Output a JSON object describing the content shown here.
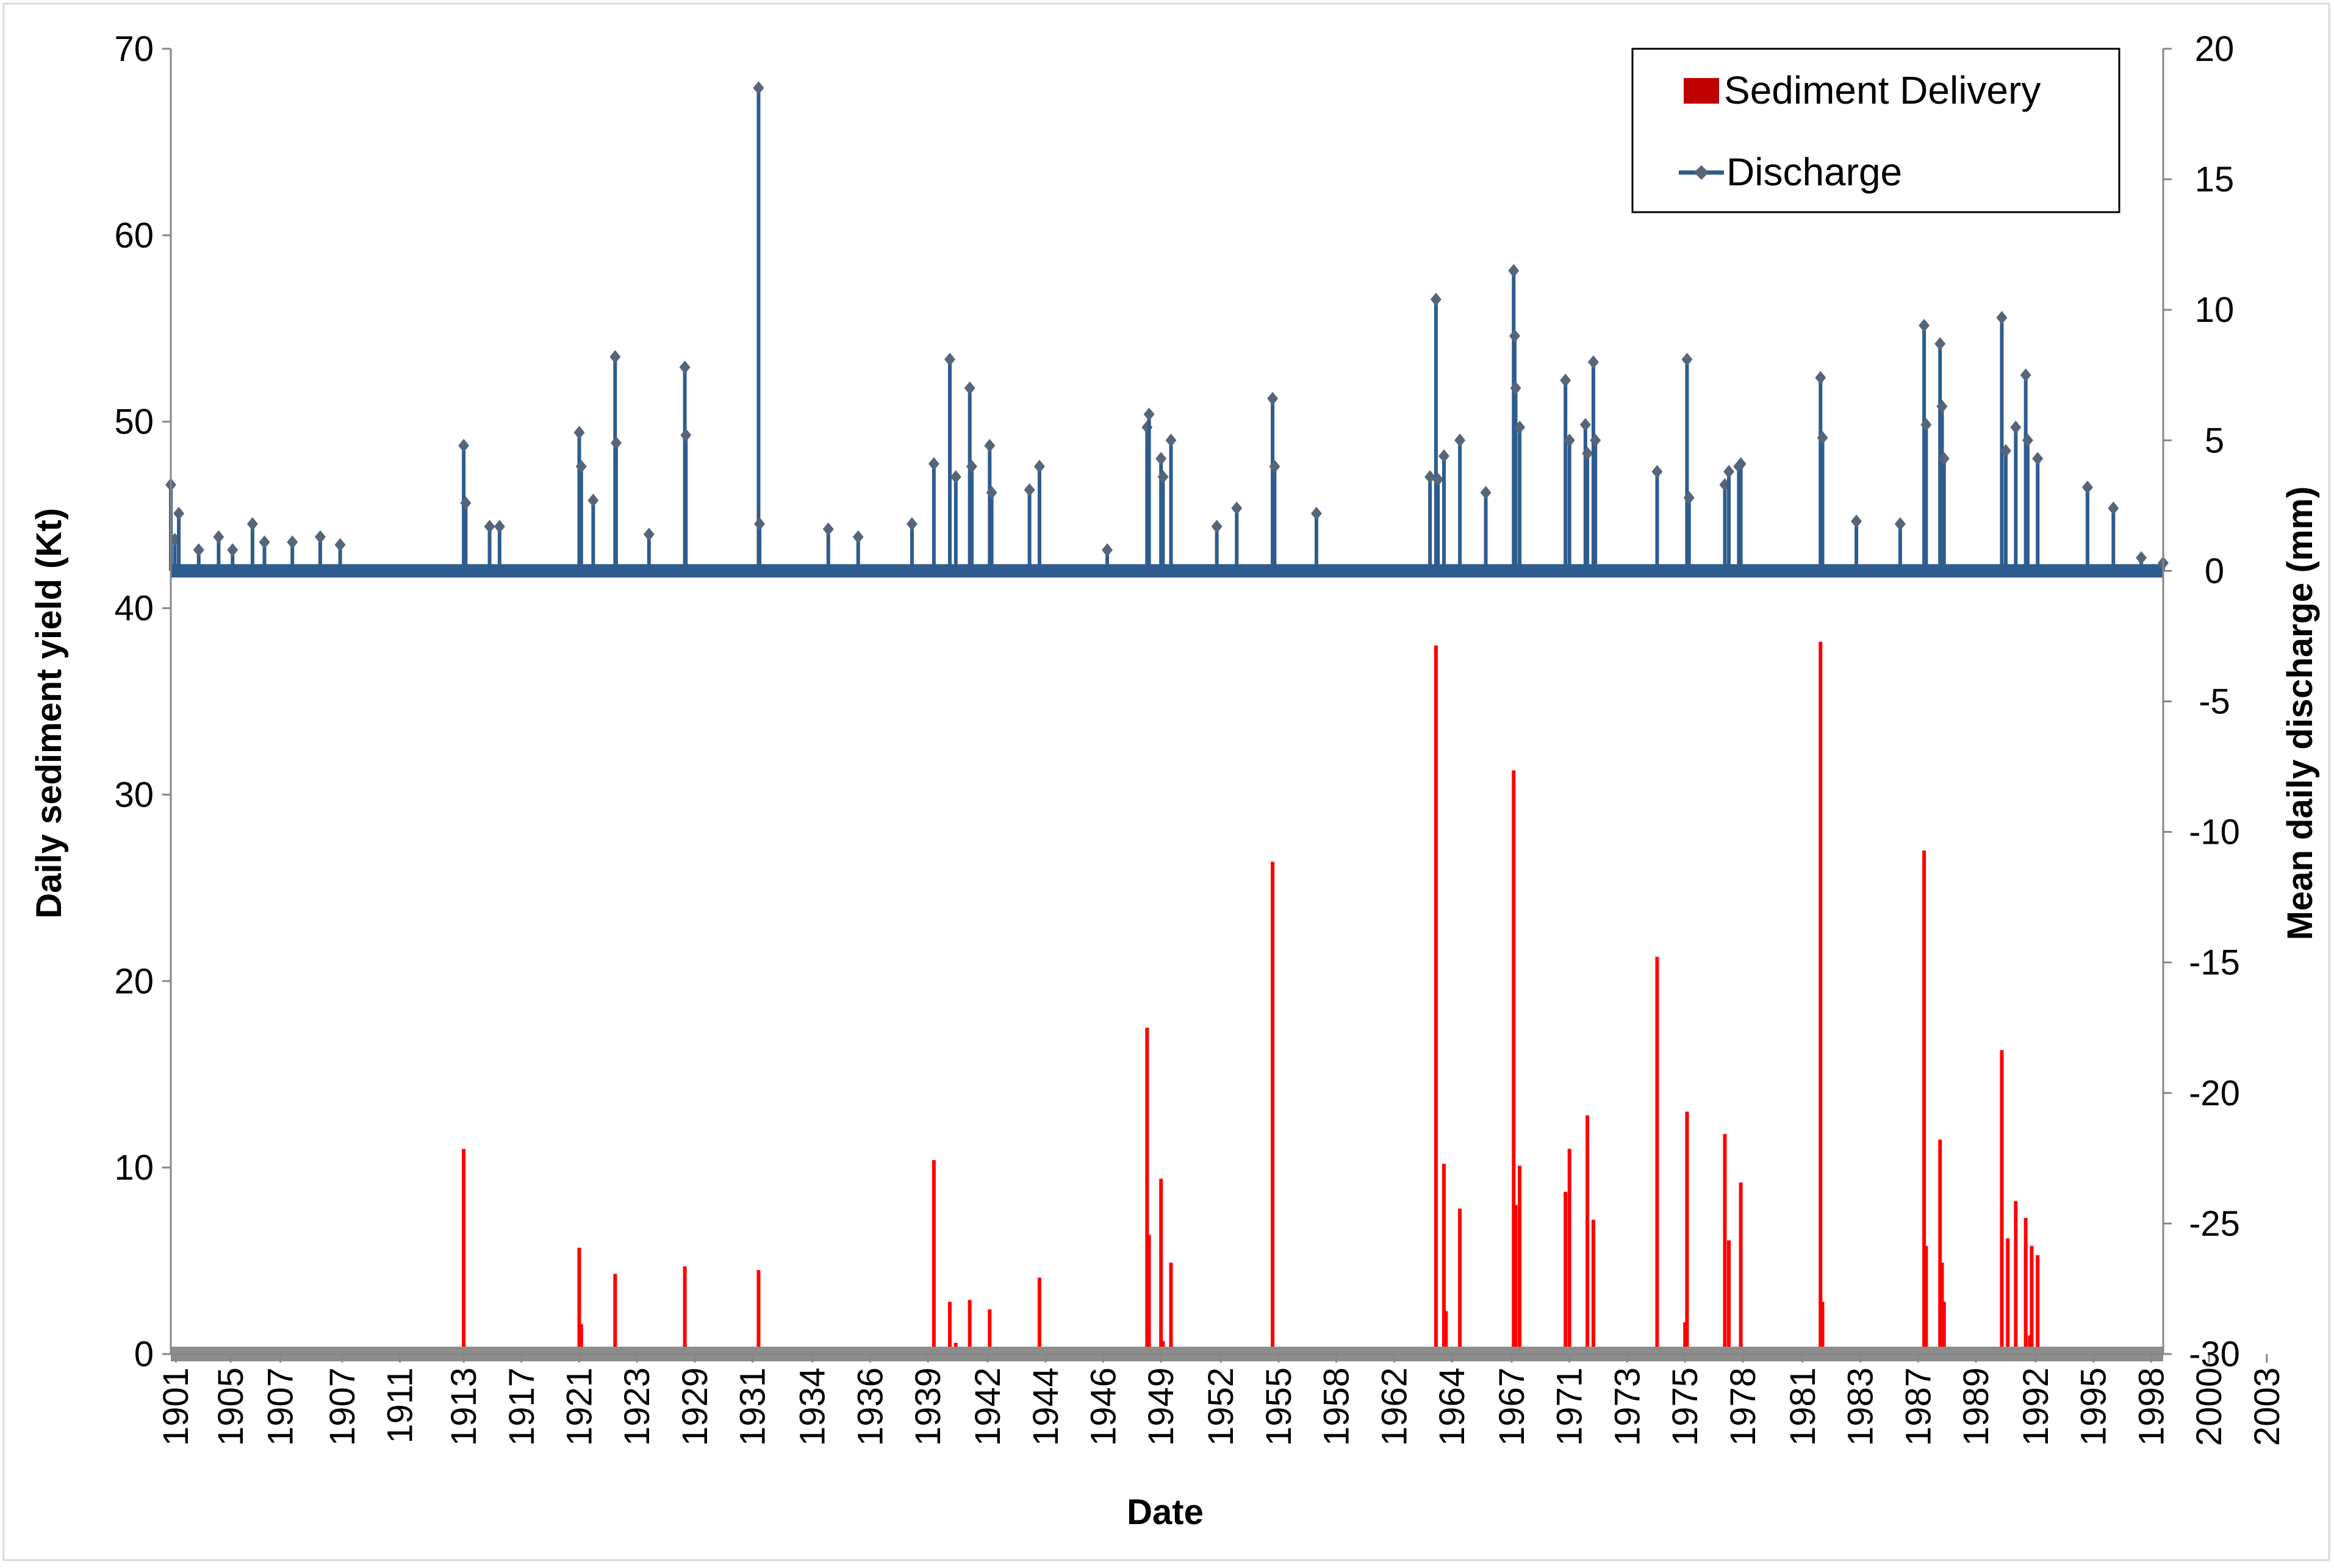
{
  "chart_data": {
    "type": "bar+line",
    "title": "",
    "xlabel": "Date",
    "ylabel_left": "Daily sediment yield (Kt)",
    "ylabel_right": "Mean daily discharge (mm)",
    "ylim_left": [
      0,
      70
    ],
    "yticks_left": [
      "0",
      "10",
      "20",
      "30",
      "40",
      "50",
      "60",
      "70"
    ],
    "ylim_right": [
      -30,
      20
    ],
    "yticks_right": [
      "-30",
      "-25",
      "-20",
      "-15",
      "-10",
      "-5",
      "0",
      "5",
      "10",
      "15",
      "20"
    ],
    "x_index_range": [
      0,
      1000
    ],
    "categories": [
      "1901",
      "1905",
      "1907",
      "1907",
      "1911",
      "1913",
      "1917",
      "1921",
      "1923",
      "1929",
      "1931",
      "1934",
      "1936",
      "1939",
      "1942",
      "1944",
      "1946",
      "1949",
      "1952",
      "1955",
      "1958",
      "1962",
      "1964",
      "1967",
      "1971",
      "1973",
      "1975",
      "1978",
      "1981",
      "1983",
      "1987",
      "1989",
      "1992",
      "1995",
      "1998",
      "2000",
      "2003"
    ],
    "category_positions": [
      2.5,
      30,
      55,
      86,
      115,
      147,
      176,
      205,
      234,
      263,
      292,
      322,
      351,
      380,
      410,
      439,
      468,
      497,
      527,
      556,
      585,
      614,
      643,
      673,
      702,
      731,
      760,
      789,
      819,
      848,
      877,
      906,
      936,
      965,
      994,
      1023,
      1052
    ],
    "legend": {
      "position": "top-right",
      "entries": [
        "Sediment Delivery",
        "Discharge"
      ]
    },
    "series": [
      {
        "name": "Sediment Delivery",
        "kind": "bar",
        "axis": "left",
        "color": "#ff0000",
        "points": [
          {
            "x": 147,
            "y": 11.0
          },
          {
            "x": 205,
            "y": 5.7
          },
          {
            "x": 206,
            "y": 1.6
          },
          {
            "x": 223,
            "y": 4.3
          },
          {
            "x": 258,
            "y": 4.7
          },
          {
            "x": 295,
            "y": 4.5
          },
          {
            "x": 383,
            "y": 10.4
          },
          {
            "x": 391,
            "y": 2.8
          },
          {
            "x": 394,
            "y": 0.6
          },
          {
            "x": 401,
            "y": 2.9
          },
          {
            "x": 411,
            "y": 2.4
          },
          {
            "x": 436,
            "y": 4.1
          },
          {
            "x": 490,
            "y": 17.5
          },
          {
            "x": 491,
            "y": 6.4
          },
          {
            "x": 497,
            "y": 9.4
          },
          {
            "x": 498,
            "y": 0.7
          },
          {
            "x": 502,
            "y": 4.9
          },
          {
            "x": 553,
            "y": 26.4
          },
          {
            "x": 635,
            "y": 38.0
          },
          {
            "x": 639,
            "y": 10.2
          },
          {
            "x": 640,
            "y": 2.3
          },
          {
            "x": 647,
            "y": 7.8
          },
          {
            "x": 674,
            "y": 31.3
          },
          {
            "x": 675,
            "y": 8.0
          },
          {
            "x": 677,
            "y": 10.1
          },
          {
            "x": 700,
            "y": 8.7
          },
          {
            "x": 702,
            "y": 11.0
          },
          {
            "x": 711,
            "y": 12.8
          },
          {
            "x": 714,
            "y": 7.2
          },
          {
            "x": 746,
            "y": 21.3
          },
          {
            "x": 761,
            "y": 13.0
          },
          {
            "x": 760,
            "y": 1.7
          },
          {
            "x": 780,
            "y": 11.8
          },
          {
            "x": 782,
            "y": 6.1
          },
          {
            "x": 788,
            "y": 9.2
          },
          {
            "x": 828,
            "y": 38.2
          },
          {
            "x": 829,
            "y": 2.8
          },
          {
            "x": 880,
            "y": 27.0
          },
          {
            "x": 881,
            "y": 5.8
          },
          {
            "x": 888,
            "y": 11.5
          },
          {
            "x": 889,
            "y": 4.9
          },
          {
            "x": 890,
            "y": 2.8
          },
          {
            "x": 919,
            "y": 16.3
          },
          {
            "x": 922,
            "y": 6.2
          },
          {
            "x": 926,
            "y": 8.2
          },
          {
            "x": 931,
            "y": 7.3
          },
          {
            "x": 933,
            "y": 1.0
          },
          {
            "x": 934,
            "y": 5.8
          },
          {
            "x": 937,
            "y": 5.3
          }
        ]
      },
      {
        "name": "Discharge",
        "kind": "line",
        "axis": "right",
        "color": "#2e5c8e",
        "marker_color": "#56657a",
        "points": [
          {
            "x": 0,
            "y": 3.3
          },
          {
            "x": 2,
            "y": 1.2
          },
          {
            "x": 4,
            "y": 2.2
          },
          {
            "x": 14,
            "y": 0.8
          },
          {
            "x": 24,
            "y": 1.3
          },
          {
            "x": 31,
            "y": 0.8
          },
          {
            "x": 41,
            "y": 1.8
          },
          {
            "x": 47,
            "y": 1.1
          },
          {
            "x": 61,
            "y": 1.1
          },
          {
            "x": 75,
            "y": 1.3
          },
          {
            "x": 85,
            "y": 1.0
          },
          {
            "x": 147,
            "y": 4.8
          },
          {
            "x": 148,
            "y": 2.6
          },
          {
            "x": 160,
            "y": 1.7
          },
          {
            "x": 165,
            "y": 1.7
          },
          {
            "x": 205,
            "y": 5.3
          },
          {
            "x": 206,
            "y": 4.0
          },
          {
            "x": 212,
            "y": 2.7
          },
          {
            "x": 223,
            "y": 8.2
          },
          {
            "x": 223.5,
            "y": 4.9
          },
          {
            "x": 240,
            "y": 1.4
          },
          {
            "x": 258,
            "y": 7.8
          },
          {
            "x": 258.5,
            "y": 5.2
          },
          {
            "x": 295,
            "y": 18.5
          },
          {
            "x": 295.5,
            "y": 1.8
          },
          {
            "x": 330,
            "y": 1.6
          },
          {
            "x": 345,
            "y": 1.3
          },
          {
            "x": 372,
            "y": 1.8
          },
          {
            "x": 383,
            "y": 4.1
          },
          {
            "x": 391,
            "y": 8.1
          },
          {
            "x": 394,
            "y": 3.6
          },
          {
            "x": 401,
            "y": 7.0
          },
          {
            "x": 402,
            "y": 4.0
          },
          {
            "x": 411,
            "y": 4.8
          },
          {
            "x": 412,
            "y": 3.0
          },
          {
            "x": 431,
            "y": 3.1
          },
          {
            "x": 436,
            "y": 4.0
          },
          {
            "x": 470,
            "y": 0.8
          },
          {
            "x": 490,
            "y": 5.5
          },
          {
            "x": 491,
            "y": 6.0
          },
          {
            "x": 497,
            "y": 4.3
          },
          {
            "x": 498,
            "y": 3.6
          },
          {
            "x": 502,
            "y": 5.0
          },
          {
            "x": 525,
            "y": 1.7
          },
          {
            "x": 535,
            "y": 2.4
          },
          {
            "x": 553,
            "y": 6.6
          },
          {
            "x": 554,
            "y": 4.0
          },
          {
            "x": 575,
            "y": 2.2
          },
          {
            "x": 632,
            "y": 3.6
          },
          {
            "x": 635,
            "y": 10.4
          },
          {
            "x": 636,
            "y": 3.5
          },
          {
            "x": 639,
            "y": 4.4
          },
          {
            "x": 647,
            "y": 5.0
          },
          {
            "x": 660,
            "y": 3.0
          },
          {
            "x": 674,
            "y": 11.5
          },
          {
            "x": 674.5,
            "y": 9.0
          },
          {
            "x": 675,
            "y": 7.0
          },
          {
            "x": 677,
            "y": 5.5
          },
          {
            "x": 700,
            "y": 7.3
          },
          {
            "x": 702,
            "y": 5.0
          },
          {
            "x": 710,
            "y": 5.6
          },
          {
            "x": 711,
            "y": 4.5
          },
          {
            "x": 714,
            "y": 8.0
          },
          {
            "x": 715,
            "y": 5.0
          },
          {
            "x": 746,
            "y": 3.8
          },
          {
            "x": 761,
            "y": 8.1
          },
          {
            "x": 762,
            "y": 2.8
          },
          {
            "x": 780,
            "y": 3.3
          },
          {
            "x": 782,
            "y": 3.8
          },
          {
            "x": 787,
            "y": 4.0
          },
          {
            "x": 788,
            "y": 4.1
          },
          {
            "x": 828,
            "y": 7.4
          },
          {
            "x": 829,
            "y": 5.1
          },
          {
            "x": 846,
            "y": 1.9
          },
          {
            "x": 868,
            "y": 1.8
          },
          {
            "x": 880,
            "y": 9.4
          },
          {
            "x": 881,
            "y": 5.6
          },
          {
            "x": 888,
            "y": 8.7
          },
          {
            "x": 889,
            "y": 6.3
          },
          {
            "x": 890,
            "y": 4.3
          },
          {
            "x": 919,
            "y": 9.7
          },
          {
            "x": 921,
            "y": 4.6
          },
          {
            "x": 926,
            "y": 5.5
          },
          {
            "x": 931,
            "y": 7.5
          },
          {
            "x": 932,
            "y": 5.0
          },
          {
            "x": 937,
            "y": 4.3
          },
          {
            "x": 962,
            "y": 3.2
          },
          {
            "x": 975,
            "y": 2.4
          },
          {
            "x": 989,
            "y": 0.5
          },
          {
            "x": 1000,
            "y": 0.3
          }
        ]
      }
    ]
  }
}
